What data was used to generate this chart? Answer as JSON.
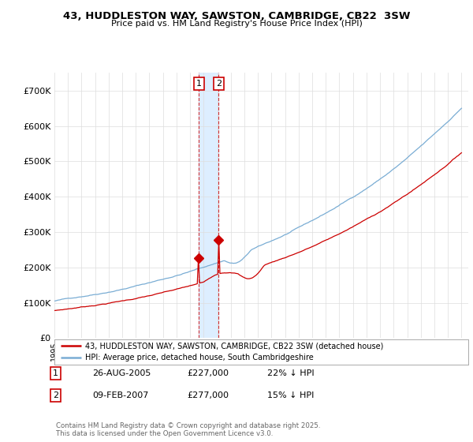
{
  "title_line1": "43, HUDDLESTON WAY, SAWSTON, CAMBRIDGE, CB22  3SW",
  "title_line2": "Price paid vs. HM Land Registry's House Price Index (HPI)",
  "legend_label_red": "43, HUDDLESTON WAY, SAWSTON, CAMBRIDGE, CB22 3SW (detached house)",
  "legend_label_blue": "HPI: Average price, detached house, South Cambridgeshire",
  "annotation1_date": "26-AUG-2005",
  "annotation1_price": "£227,000",
  "annotation1_hpi": "22% ↓ HPI",
  "annotation2_date": "09-FEB-2007",
  "annotation2_price": "£277,000",
  "annotation2_hpi": "15% ↓ HPI",
  "footer": "Contains HM Land Registry data © Crown copyright and database right 2025.\nThis data is licensed under the Open Government Licence v3.0.",
  "ylim_min": 0,
  "ylim_max": 750000,
  "yticks": [
    0,
    100000,
    200000,
    300000,
    400000,
    500000,
    600000,
    700000
  ],
  "ytick_labels": [
    "£0",
    "£100K",
    "£200K",
    "£300K",
    "£400K",
    "£500K",
    "£600K",
    "£700K"
  ],
  "color_red": "#cc0000",
  "color_blue": "#7aadd4",
  "color_shade": "#ddeeff",
  "background_color": "#ffffff",
  "grid_color": "#dddddd",
  "sale1_x": 2005.65,
  "sale1_y": 227000,
  "sale2_x": 2007.1,
  "sale2_y": 277000,
  "xmin": 1995,
  "xmax": 2025.5
}
